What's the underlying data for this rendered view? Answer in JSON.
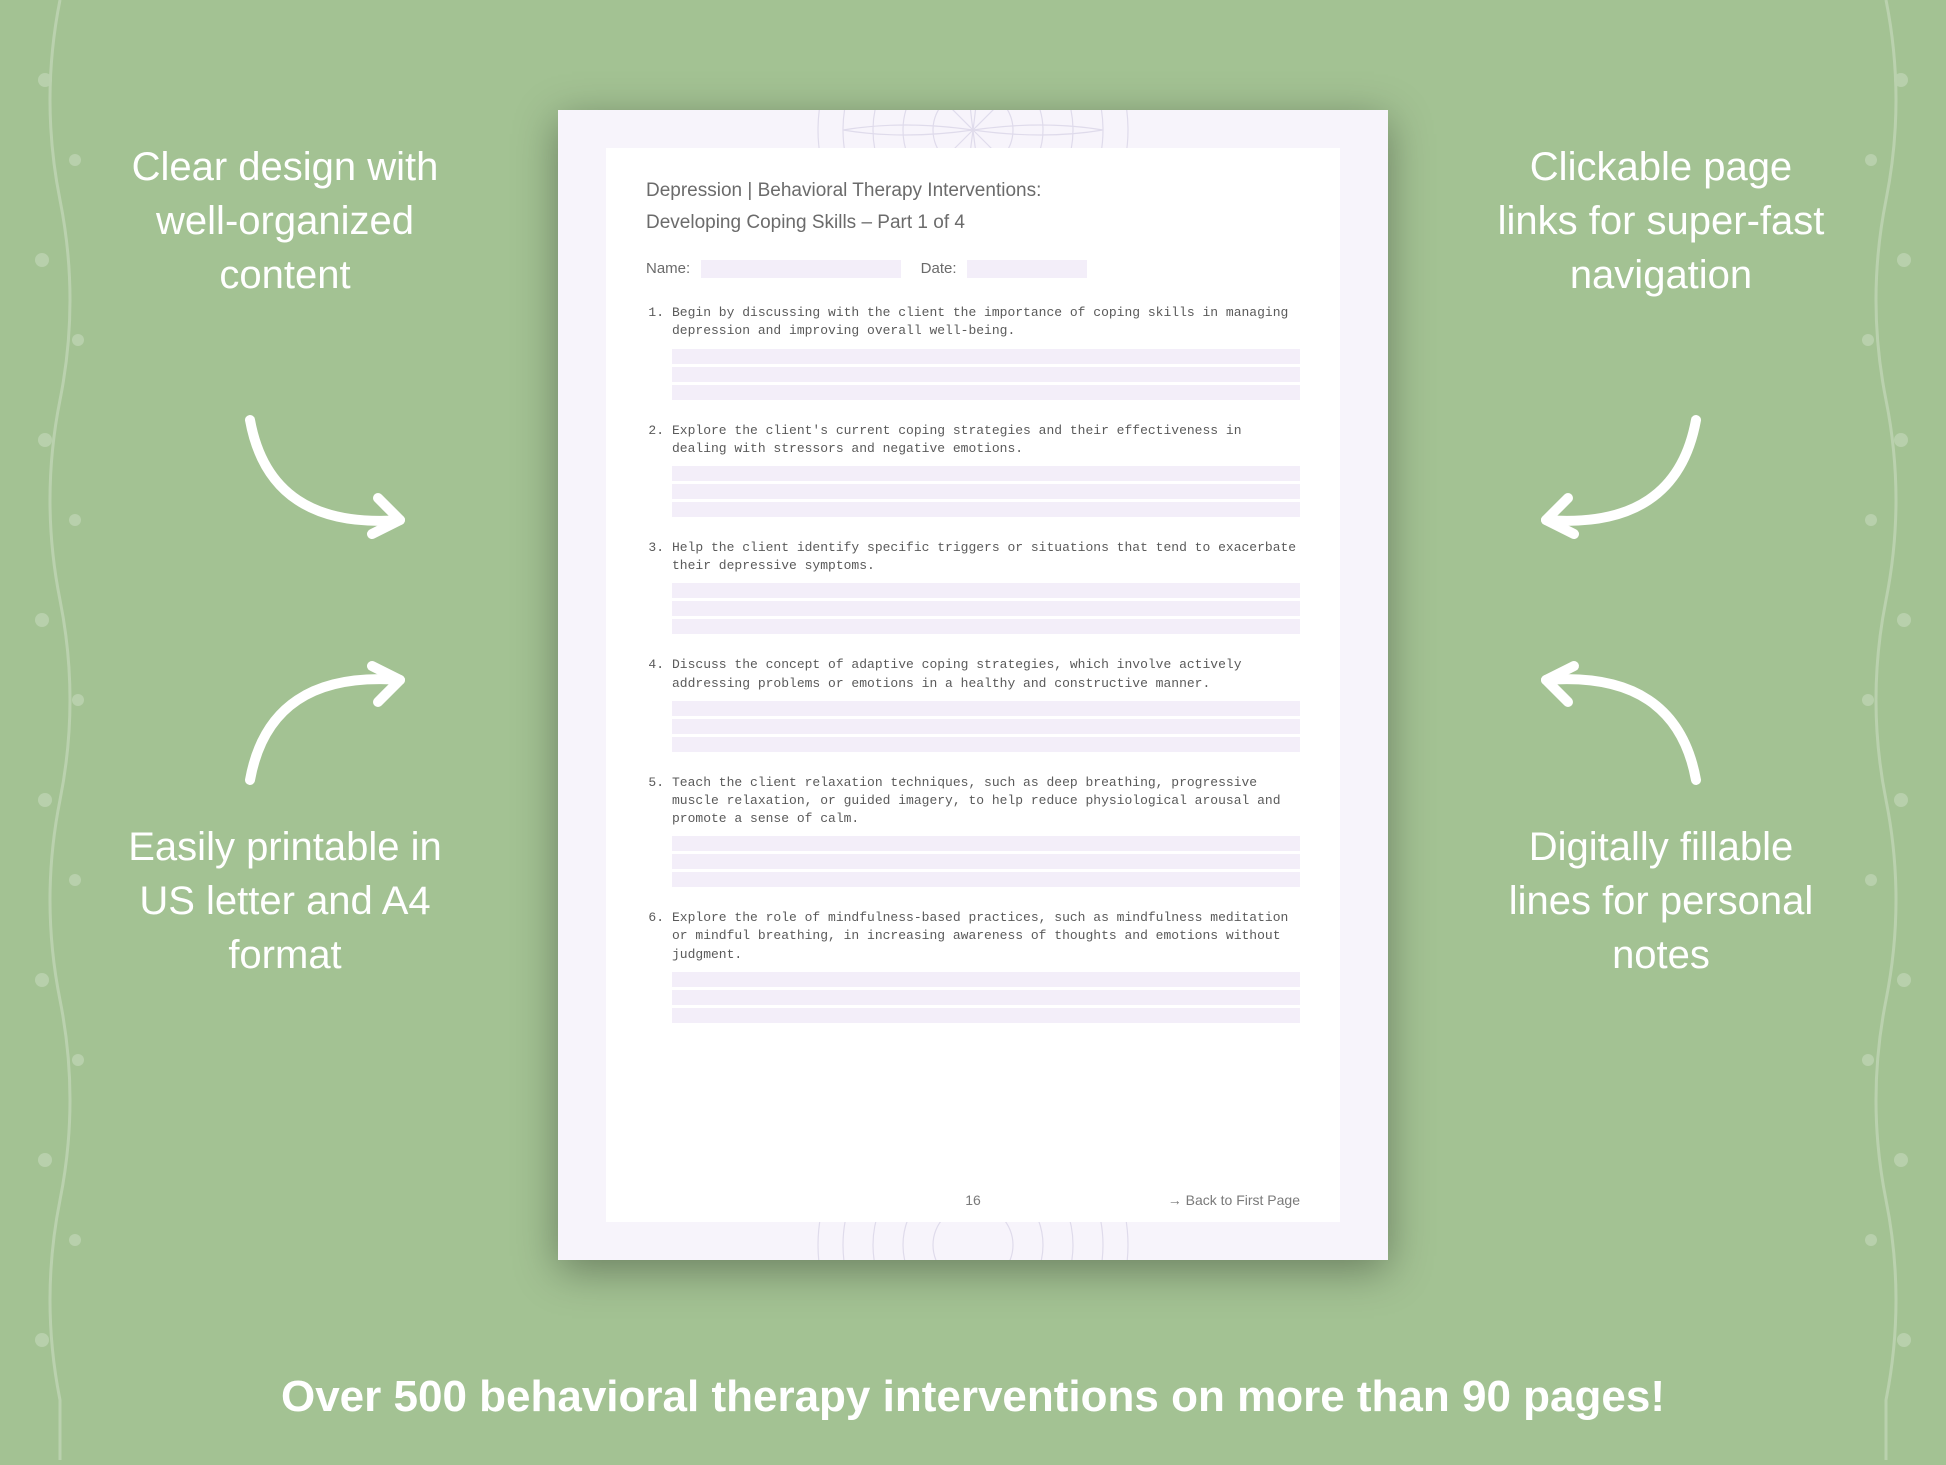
{
  "background_color": "#a3c293",
  "callouts": {
    "top_left": "Clear design with well-organized content",
    "top_right": "Clickable page links for super-fast navigation",
    "bottom_left": "Easily printable in US letter and A4 format",
    "bottom_right": "Digitally fillable lines for personal notes"
  },
  "footer": "Over 500 behavioral therapy interventions on more than 90 pages!",
  "callout_style": {
    "color": "#ffffff",
    "font_size_pt": 30,
    "font_weight": 300
  },
  "footer_style": {
    "color": "#ffffff",
    "font_size_pt": 33,
    "font_weight": 600
  },
  "arrow_color": "#ffffff",
  "arrow_stroke_width": 10,
  "document": {
    "page_bg": "#f7f4fb",
    "inner_bg": "#ffffff",
    "mandala_color": "#c9c3dd",
    "line_fill_color": "#f3eef9",
    "heading": "Depression | Behavioral Therapy Interventions:",
    "subheading": "Developing Coping Skills  – Part 1 of 4",
    "heading_color": "#6b6b6b",
    "heading_fontsize_pt": 14,
    "fields": {
      "name_label": "Name:",
      "date_label": "Date:"
    },
    "field_label_color": "#6b6b6b",
    "item_text_color": "#5a5a5a",
    "item_font": "Courier New",
    "item_fontsize_pt": 10,
    "items": [
      {
        "n": "1.",
        "text": "Begin by discussing with the client the importance of coping skills in managing depression and improving overall well-being."
      },
      {
        "n": "2.",
        "text": "Explore the client's current coping strategies and their effectiveness in dealing with stressors and negative emotions."
      },
      {
        "n": "3.",
        "text": "Help the client identify specific triggers or situations that tend to exacerbate their depressive symptoms."
      },
      {
        "n": "4.",
        "text": "Discuss the concept of adaptive coping strategies, which involve actively addressing problems or emotions in a healthy and constructive manner."
      },
      {
        "n": "5.",
        "text": "Teach the client relaxation techniques, such as deep breathing, progressive muscle relaxation, or guided imagery, to help reduce physiological arousal and promote a sense of calm."
      },
      {
        "n": "6.",
        "text": "Explore the role of mindfulness-based practices, such as mindfulness meditation or mindful breathing, in increasing awareness of thoughts and emotions without judgment."
      }
    ],
    "fill_lines_per_item": 3,
    "page_number": "16",
    "back_link": "→ Back to First Page",
    "footer_text_color": "#7a7a7a"
  }
}
